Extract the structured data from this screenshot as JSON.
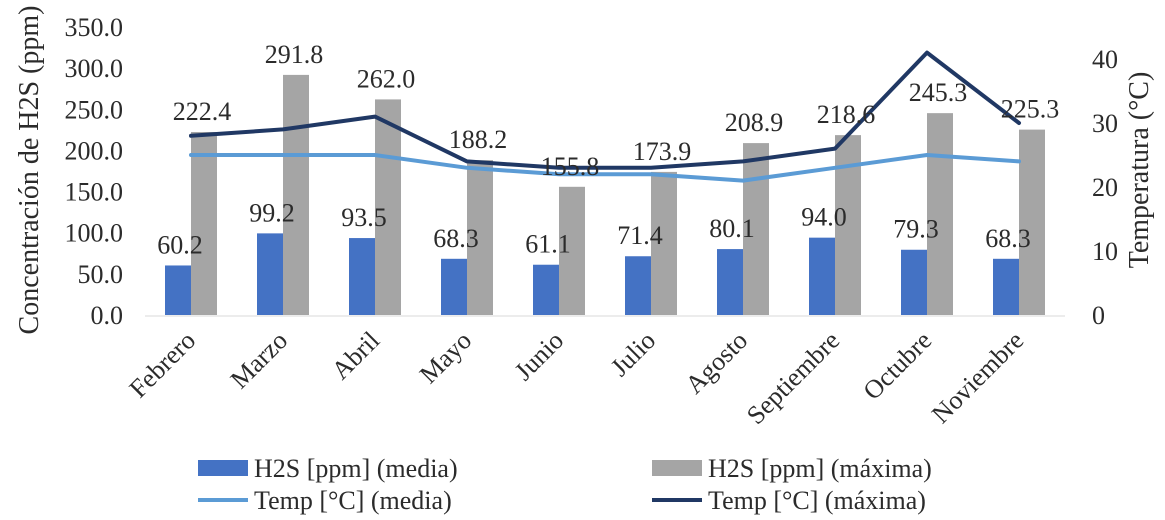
{
  "chart_data": {
    "type": "bar",
    "title": "",
    "categories": [
      "Febrero",
      "Marzo",
      "Abril",
      "Mayo",
      "Junio",
      "Julio",
      "Agosto",
      "Septiembre",
      "Octubre",
      "Noviembre"
    ],
    "ylabel": "Concentración de H2S (ppm)",
    "y2label": "Temperatura (°C)",
    "ylim": [
      0,
      350
    ],
    "y_ticks": [
      "0.0",
      "50.0",
      "100.0",
      "150.0",
      "200.0",
      "250.0",
      "300.0",
      "350.0"
    ],
    "y2lim": [
      0,
      45
    ],
    "y2_ticks": [
      "0",
      "10",
      "20",
      "30",
      "40"
    ],
    "legend_position": "bottom",
    "series": [
      {
        "name": "H2S [ppm] (media)",
        "type": "bar",
        "axis": "left",
        "color": "#4472C4",
        "values": [
          60.2,
          99.2,
          93.5,
          68.3,
          61.1,
          71.4,
          80.1,
          94.0,
          79.3,
          68.3
        ],
        "data_labels": [
          "60.2",
          "99.2",
          "93.5",
          "68.3",
          "61.1",
          "71.4",
          "80.1",
          "94.0",
          "79.3",
          "68.3"
        ]
      },
      {
        "name": "H2S [ppm] (máxima)",
        "type": "bar",
        "axis": "left",
        "color": "#A5A5A5",
        "values": [
          222.4,
          291.8,
          262.0,
          188.2,
          155.8,
          173.9,
          208.9,
          218.6,
          245.3,
          225.3
        ],
        "data_labels": [
          "222.4",
          "291.8",
          "262.0",
          "188.2",
          "155.8",
          "173.9",
          "208.9",
          "218.6",
          "245.3",
          "225.3"
        ]
      },
      {
        "name": "Temp [°C]  (media)",
        "type": "line",
        "axis": "right",
        "color": "#5B9BD5",
        "values": [
          25,
          25,
          25,
          23,
          22,
          22,
          21,
          23,
          25,
          24
        ]
      },
      {
        "name": "Temp [°C]  (máxima)",
        "type": "line",
        "axis": "right",
        "color": "#203864",
        "values": [
          28,
          29,
          31,
          24,
          23,
          23,
          24,
          26,
          41,
          30
        ]
      }
    ]
  }
}
